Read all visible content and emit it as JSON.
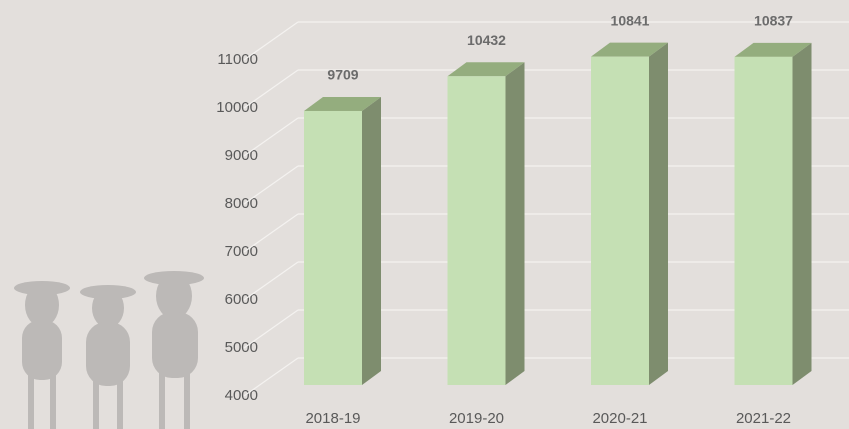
{
  "chart_data": {
    "type": "bar3d",
    "categories": [
      "2018-19",
      "2019-20",
      "2020-21",
      "2021-22"
    ],
    "values": [
      9709,
      10432,
      10841,
      10837
    ],
    "colors": {
      "front": "#c5e0b4",
      "side": "#7e8d6e",
      "top": "#94ad7e"
    },
    "ylim": [
      4000,
      11000
    ],
    "yticks": [
      4000,
      5000,
      6000,
      7000,
      8000,
      9000,
      10000,
      11000
    ],
    "grid": true
  }
}
